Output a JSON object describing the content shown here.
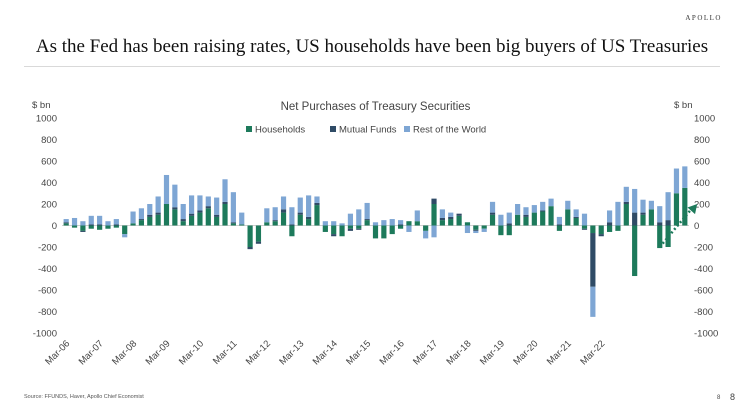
{
  "brand": "APOLLO",
  "headline": "As the Fed has been raising rates, US households have been big buyers of US Treasuries",
  "footer": {
    "source": "Source: FFUNDS, Haver, Apollo Chief Economist",
    "page_small": "8",
    "page": "8"
  },
  "colors": {
    "households": "#1d7a5b",
    "mutual_funds": "#2f4b66",
    "rest_of_world": "#7ea6d4",
    "arrow": "#1d7a5b"
  },
  "chart_data": {
    "type": "bar",
    "stacked": true,
    "title": "Net Purchases of Treasury Securities",
    "ylabel_left": "$ bn",
    "ylabel_right": "$ bn",
    "ylim": [
      -1000,
      1000
    ],
    "yticks": [
      1000,
      800,
      600,
      400,
      200,
      0,
      -200,
      -400,
      -600,
      -800,
      -1000
    ],
    "legend": {
      "position": "top",
      "entries": [
        "Households",
        "Mutual Funds",
        "Rest of the World"
      ]
    },
    "xtick_labels": [
      "Mar-06",
      "Mar-07",
      "Mar-08",
      "Mar-09",
      "Mar-10",
      "Mar-11",
      "Mar-12",
      "Mar-13",
      "Mar-14",
      "Mar-15",
      "Mar-16",
      "Mar-17",
      "Mar-18",
      "Mar-19",
      "Mar-20",
      "Mar-21",
      "Mar-22"
    ],
    "xtick_every": 4,
    "series": [
      {
        "name": "Households",
        "values": [
          20,
          -20,
          -50,
          -30,
          -40,
          -30,
          -20,
          -80,
          20,
          50,
          80,
          100,
          200,
          150,
          40,
          90,
          120,
          160,
          80,
          200,
          20,
          10,
          -200,
          -150,
          30,
          40,
          120,
          -100,
          100,
          60,
          190,
          -60,
          -80,
          -100,
          -30,
          -30,
          50,
          -120,
          -120,
          -80,
          -30,
          40,
          40,
          -50,
          200,
          50,
          60,
          90,
          30,
          -40,
          -30,
          100,
          -90,
          -90,
          100,
          80,
          120,
          130,
          180,
          -50,
          150,
          70,
          -30,
          -70,
          -80,
          -60,
          -50,
          200,
          -470,
          100,
          150,
          -210,
          -200,
          300,
          350
        ]
      },
      {
        "name": "Mutual Funds",
        "values": [
          10,
          0,
          -10,
          10,
          10,
          0,
          10,
          0,
          0,
          10,
          20,
          20,
          0,
          20,
          20,
          20,
          20,
          20,
          20,
          20,
          10,
          0,
          -20,
          -20,
          0,
          10,
          30,
          10,
          20,
          20,
          20,
          0,
          -20,
          0,
          -20,
          -10,
          10,
          0,
          0,
          0,
          10,
          0,
          0,
          0,
          50,
          20,
          20,
          20,
          0,
          -10,
          0,
          20,
          0,
          20,
          0,
          20,
          0,
          10,
          0,
          10,
          0,
          10,
          -10,
          -500,
          -20,
          30,
          0,
          20,
          120,
          20,
          0,
          30,
          50,
          0,
          0
        ]
      },
      {
        "name": "Rest of the World",
        "values": [
          30,
          70,
          40,
          80,
          80,
          40,
          50,
          -30,
          110,
          100,
          100,
          150,
          270,
          210,
          140,
          170,
          140,
          90,
          160,
          210,
          280,
          110,
          0,
          0,
          130,
          120,
          120,
          160,
          140,
          200,
          60,
          40,
          40,
          20,
          110,
          150,
          150,
          30,
          50,
          60,
          40,
          -60,
          100,
          -70,
          -110,
          80,
          40,
          0,
          -70,
          -20,
          -30,
          100,
          100,
          100,
          100,
          70,
          70,
          80,
          70,
          70,
          80,
          70,
          110,
          -280,
          0,
          110,
          220,
          140,
          220,
          120,
          80,
          150,
          260,
          230,
          200
        ]
      }
    ],
    "annotation": {
      "type": "dotted-arrow",
      "from": [
        71,
        -200
      ],
      "to": [
        75,
        200
      ]
    }
  }
}
